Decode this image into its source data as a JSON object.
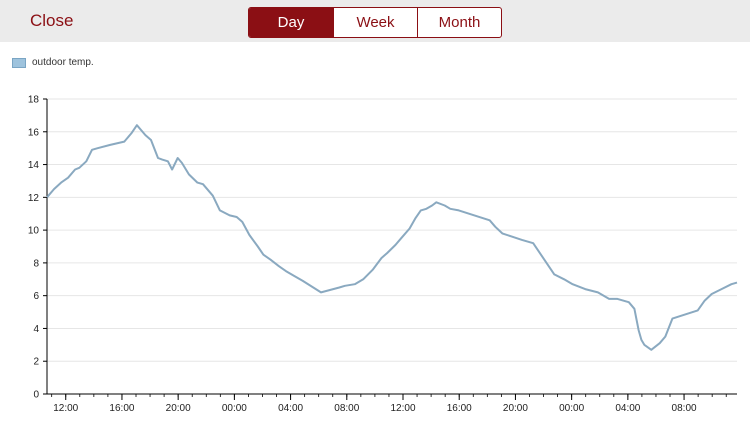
{
  "header": {
    "close_label": "Close",
    "tabs": [
      {
        "label": "Day",
        "active": true
      },
      {
        "label": "Week",
        "active": false
      },
      {
        "label": "Month",
        "active": false
      }
    ]
  },
  "colors": {
    "accent": "#8b0f14",
    "series": "#8aa9c0",
    "legend_swatch": "#9ec3dd",
    "grid": "#e6e6e6"
  },
  "chart_data": {
    "type": "line",
    "title": "",
    "xlabel": "",
    "ylabel": "",
    "ylim": [
      0,
      18
    ],
    "yticks": [
      "0",
      "2",
      "4",
      "6",
      "8",
      "10",
      "12",
      "14",
      "16",
      "18"
    ],
    "xlim": [
      "10:40",
      "10:40 +2d"
    ],
    "xticks": [
      "12:00",
      "16:00",
      "20:00",
      "00:00",
      "04:00",
      "08:00",
      "12:00",
      "16:00",
      "20:00",
      "00:00",
      "04:00",
      "08:00"
    ],
    "grid": true,
    "legend": "top-left",
    "series": [
      {
        "name": "outdoor temp.",
        "x_hours": [
          0,
          0.5,
          1,
          1.5,
          2,
          2.3,
          2.8,
          3.2,
          3.6,
          4.5,
          5.5,
          6,
          6.4,
          7,
          7.4,
          7.9,
          8.2,
          8.6,
          8.9,
          9.3,
          9.6,
          10.1,
          10.7,
          11.1,
          11.8,
          12.3,
          13,
          13.5,
          13.9,
          14.4,
          15,
          15.4,
          15.9,
          16.5,
          17,
          17.6,
          18.2,
          19.5,
          20.8,
          21.2,
          21.9,
          22.5,
          23.2,
          23.8,
          24.2,
          24.8,
          25.2,
          25.8,
          26.2,
          26.6,
          27,
          27.4,
          27.7,
          28.3,
          28.7,
          29.3,
          31.5,
          31.9,
          32.4,
          33.1,
          33.8,
          34.6,
          36.1,
          36.8,
          37.4,
          38.3,
          39.2,
          40,
          40.6,
          41.4,
          41.8,
          42.1,
          42.3,
          42.5,
          43,
          43.6,
          44,
          44.5,
          46.3,
          46.8,
          47.3,
          48,
          48.7,
          49.1
        ],
        "y": [
          12.0,
          12.5,
          12.9,
          13.2,
          13.7,
          13.8,
          14.2,
          14.9,
          15.0,
          15.2,
          15.4,
          15.9,
          16.4,
          15.8,
          15.5,
          14.4,
          14.3,
          14.2,
          13.7,
          14.4,
          14.1,
          13.4,
          12.9,
          12.8,
          12.1,
          11.2,
          10.9,
          10.8,
          10.5,
          9.7,
          9.0,
          8.5,
          8.2,
          7.8,
          7.5,
          7.2,
          6.9,
          6.2,
          6.5,
          6.6,
          6.7,
          7.0,
          7.6,
          8.3,
          8.6,
          9.1,
          9.5,
          10.1,
          10.7,
          11.2,
          11.3,
          11.5,
          11.7,
          11.5,
          11.3,
          11.2,
          10.6,
          10.2,
          9.8,
          9.6,
          9.4,
          9.2,
          7.3,
          7.0,
          6.7,
          6.4,
          6.2,
          5.8,
          5.8,
          5.6,
          5.2,
          3.9,
          3.3,
          3.0,
          2.7,
          3.1,
          3.5,
          4.6,
          5.1,
          5.7,
          6.1,
          6.4,
          6.7,
          6.8
        ]
      }
    ]
  }
}
